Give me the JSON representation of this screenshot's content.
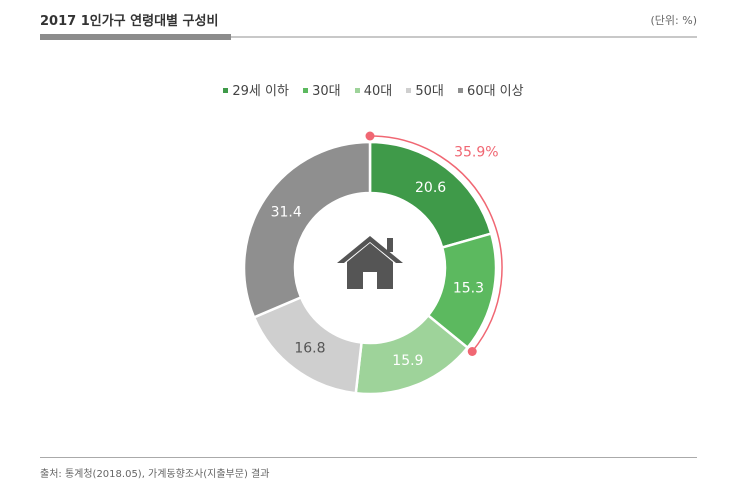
{
  "header": {
    "title": "2017 1인가구 연령대별 구성비",
    "unit": "(단위: %)"
  },
  "footer": {
    "source": "출처: 통계청(2018.05), 가계동향조사(지출부문) 결과"
  },
  "icons": {
    "center": "house-icon"
  },
  "colors": {
    "accent": "#f06773"
  },
  "chart_data": {
    "type": "pie",
    "variant": "donut",
    "title": "",
    "categories": [
      "29세 이하",
      "30대",
      "40대",
      "50대",
      "60대 이상"
    ],
    "values": [
      20.6,
      15.3,
      15.9,
      16.8,
      31.4
    ],
    "value_labels": [
      "20.6",
      "15.3",
      "15.9",
      "16.8",
      "31.4"
    ],
    "colors": [
      "#3f9a49",
      "#5cb95f",
      "#9ed39a",
      "#cfcfcf",
      "#8f8f8f"
    ],
    "label_colors": [
      "#ffffff",
      "#ffffff",
      "#ffffff",
      "#555555",
      "#ffffff"
    ],
    "start_angle_deg": 0,
    "direction": "clockwise",
    "legend_position": "top",
    "annotation": {
      "text": "35.9%",
      "spans_categories": [
        "29세 이하",
        "30대"
      ]
    }
  }
}
